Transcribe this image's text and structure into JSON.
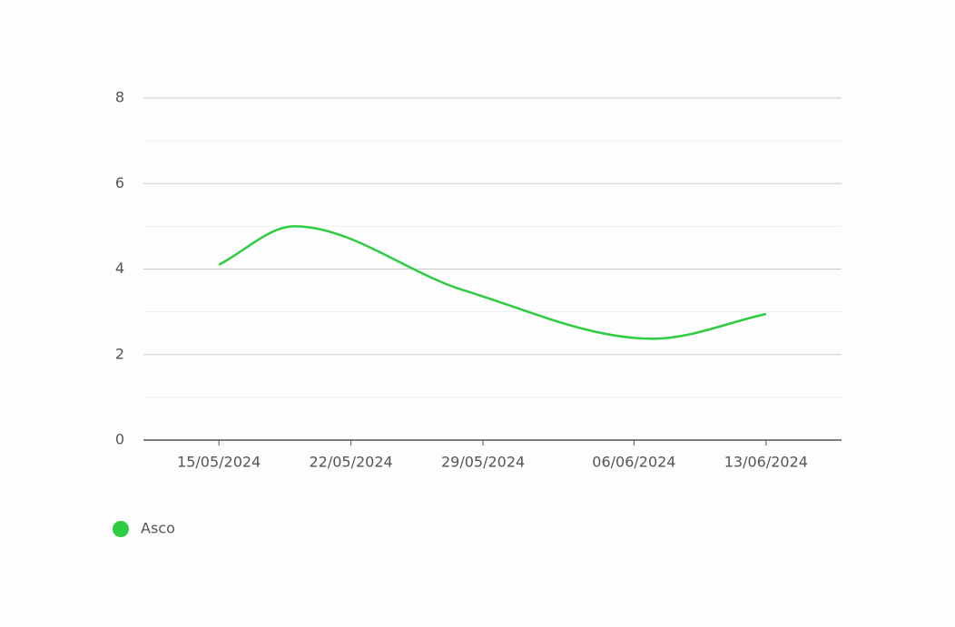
{
  "chart_data": {
    "type": "line",
    "x": [
      "15/05/2024",
      "19/05/2024",
      "28/05/2024",
      "07/06/2024",
      "13/06/2024"
    ],
    "series": [
      {
        "name": "Asco",
        "color": "#2ecc40",
        "values": [
          4.1,
          5.0,
          3.5,
          2.37,
          2.95
        ]
      }
    ],
    "xlim": [
      "11/05/2024",
      "17/06/2024"
    ],
    "xticks": [
      "15/05/2024",
      "22/05/2024",
      "29/05/2024",
      "06/06/2024",
      "13/06/2024"
    ],
    "ylim": [
      0,
      8
    ],
    "yticks": [
      0,
      2,
      4,
      6,
      8
    ],
    "minor_yticks": [
      1,
      3,
      5,
      7
    ],
    "grid": true,
    "curve": "smooth",
    "legend": "bottom-left"
  }
}
